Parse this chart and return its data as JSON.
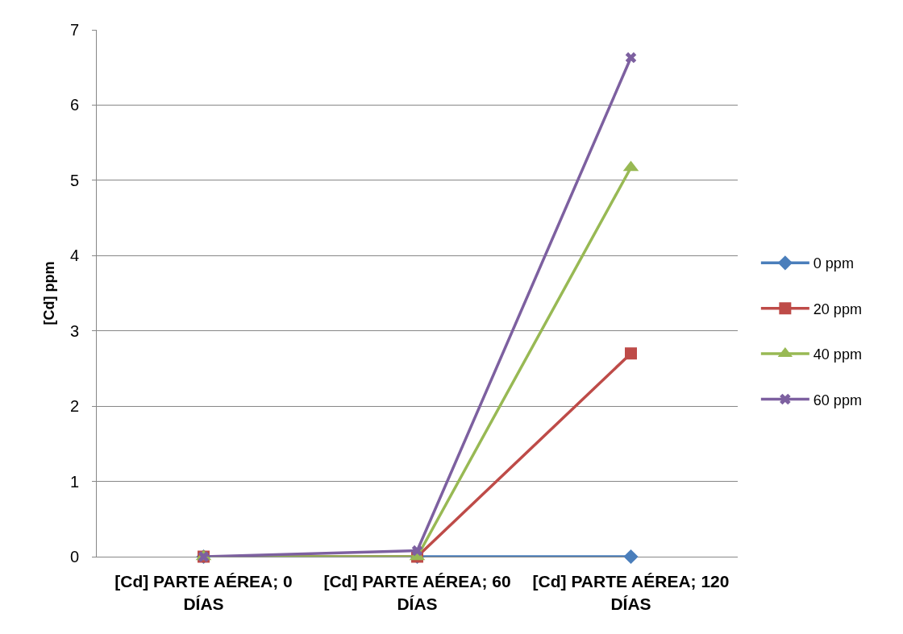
{
  "chart_data": {
    "type": "line",
    "ylabel": "[Cd] ppm",
    "categories": [
      "[Cd] PARTE AÉREA; 0 DÍAS",
      "[Cd] PARTE AÉREA; 60 DÍAS",
      "[Cd] PARTE AÉREA; 120 DÍAS"
    ],
    "series": [
      {
        "name": "0 ppm",
        "color": "#4a7ebb",
        "marker": "diamond",
        "values": [
          0,
          0,
          0
        ]
      },
      {
        "name": "20 ppm",
        "color": "#be4b48",
        "marker": "square",
        "values": [
          0,
          0,
          2.7
        ]
      },
      {
        "name": "40 ppm",
        "color": "#98b954",
        "marker": "triangle",
        "values": [
          0,
          0,
          5.17
        ]
      },
      {
        "name": "60 ppm",
        "color": "#7d60a0",
        "marker": "cross",
        "values": [
          0,
          0.08,
          6.63
        ]
      }
    ],
    "ylim": [
      0,
      7
    ],
    "yticks": [
      0,
      1,
      2,
      3,
      4,
      5,
      6,
      7
    ],
    "grid": "y",
    "legend": "right",
    "line_style": "solid"
  }
}
